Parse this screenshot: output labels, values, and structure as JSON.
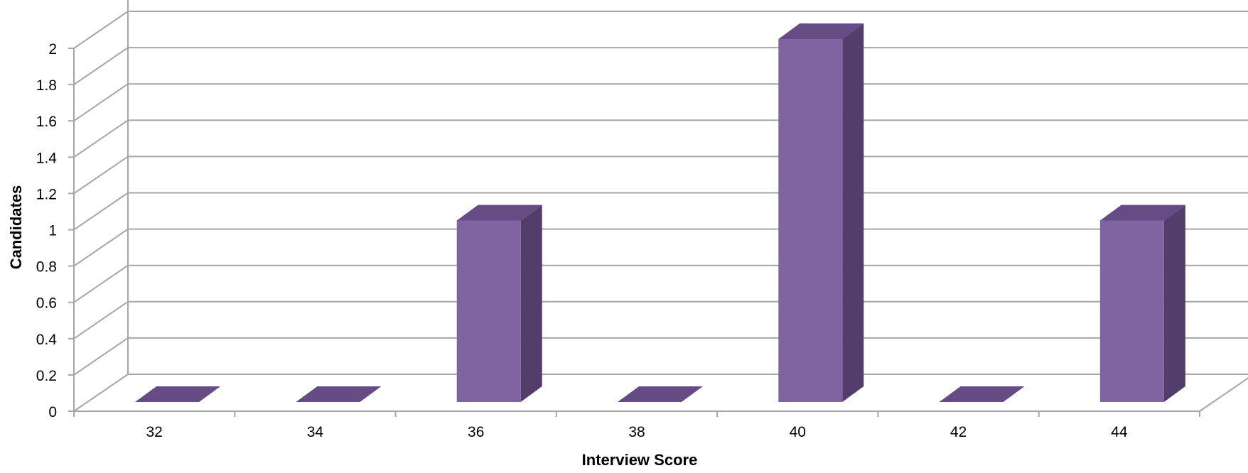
{
  "chart_data": {
    "type": "bar",
    "title": "",
    "xlabel": "Interview Score",
    "ylabel": "Candidates",
    "categories": [
      "32",
      "34",
      "36",
      "38",
      "40",
      "42",
      "44"
    ],
    "values": [
      0,
      0,
      1,
      0,
      2,
      0,
      1
    ],
    "ylim": [
      0,
      2
    ],
    "yticks": [
      "0",
      "0.2",
      "0.4",
      "0.6",
      "0.8",
      "1",
      "1.2",
      "1.4",
      "1.6",
      "1.8",
      "2"
    ],
    "grid": true,
    "legend": "none",
    "colors": {
      "front": "#8064a2",
      "side": "#523d6b",
      "top": "#654c85",
      "grid": "#a6a6a6"
    }
  }
}
